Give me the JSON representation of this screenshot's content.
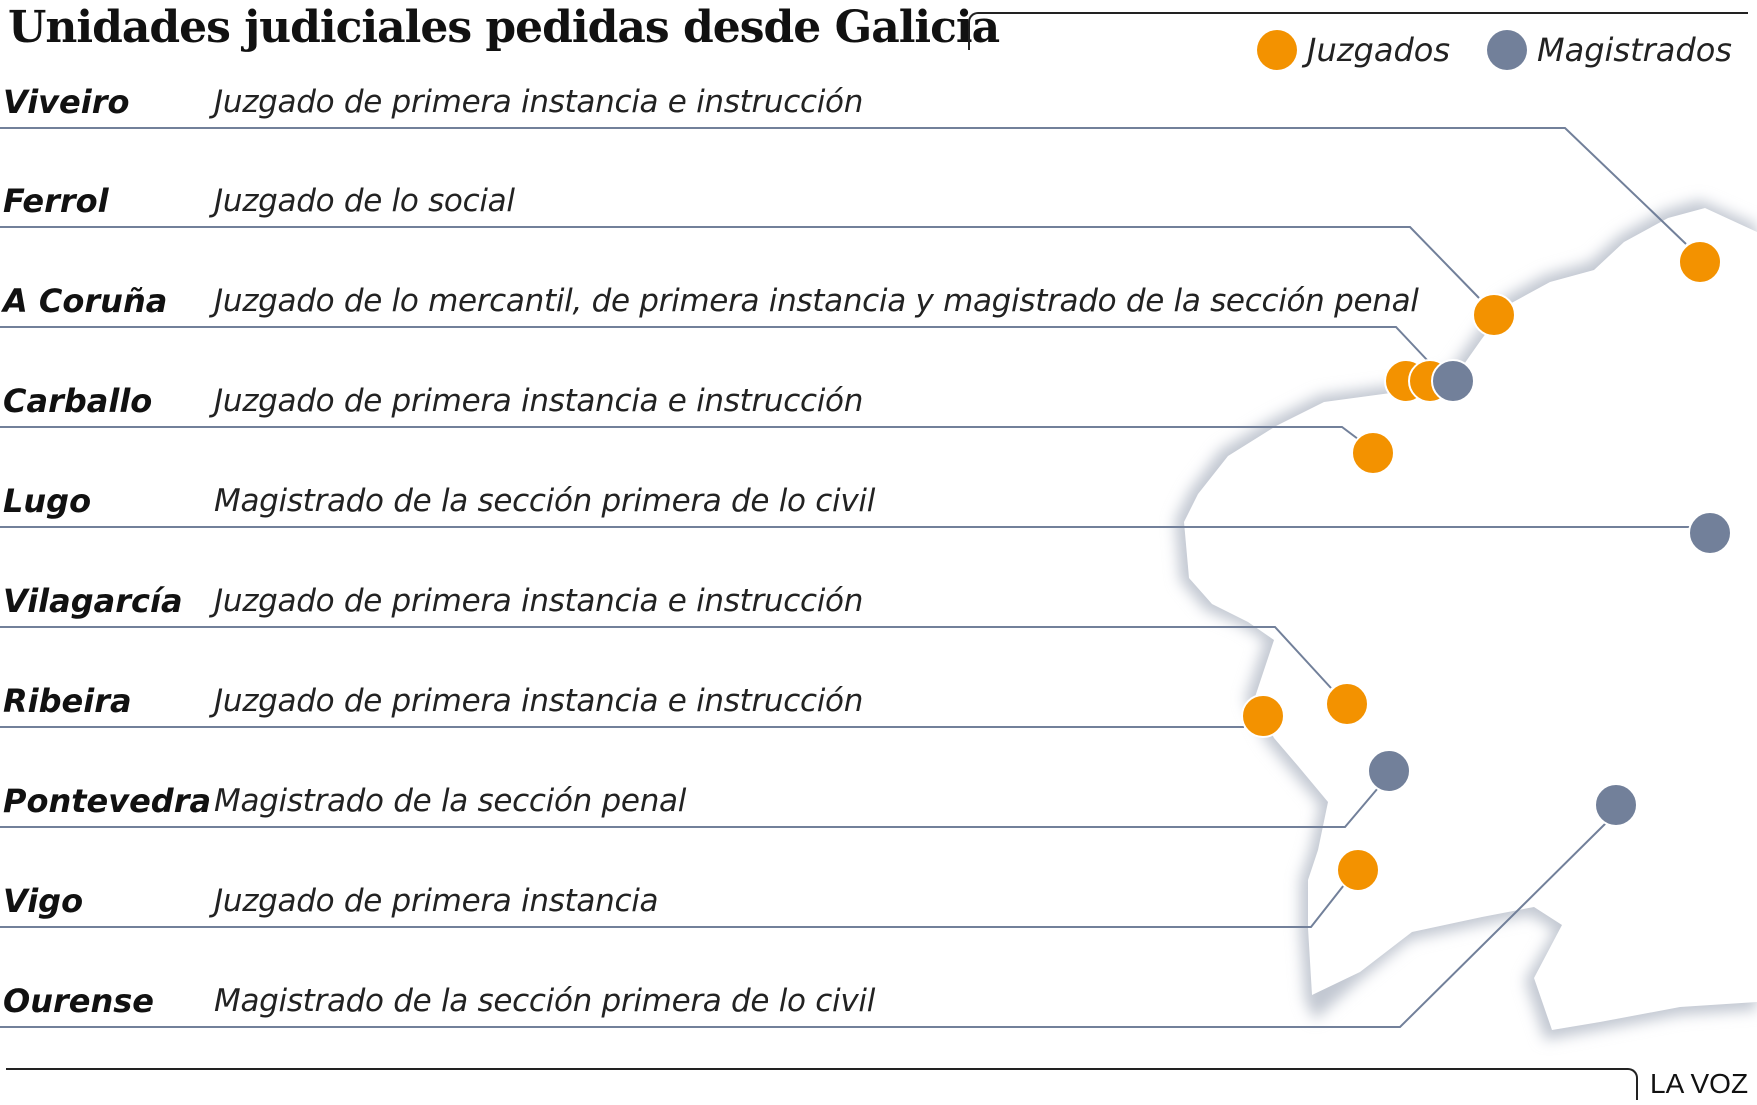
{
  "title": "Unidades judiciales pedidas desde Galicia",
  "legend": [
    {
      "label": "Juzgados",
      "color": "#F39200"
    },
    {
      "label": "Magistrados",
      "color": "#72809A"
    }
  ],
  "rows": [
    {
      "city": "Viveiro",
      "desc": "Juzgado de primera instancia e instrucción"
    },
    {
      "city": "Ferrol",
      "desc": "Juzgado de lo social"
    },
    {
      "city": "A Coruña",
      "desc": "Juzgado de lo mercantil, de primera instancia y magistrado de la sección penal"
    },
    {
      "city": "Carballo",
      "desc": "Juzgado de primera instancia e instrucción"
    },
    {
      "city": "Lugo",
      "desc": "Magistrado de la sección primera de lo civil"
    },
    {
      "city": "Vilagarcía",
      "desc": "Juzgado de primera instancia e instrucción"
    },
    {
      "city": "Ribeira",
      "desc": "Juzgado de primera instancia e instrucción"
    },
    {
      "city": "Pontevedra",
      "desc": "Magistrado de la sección penal"
    },
    {
      "city": "Vigo",
      "desc": "Juzgado de primera instancia"
    },
    {
      "city": "Ourense",
      "desc": "Magistrado de la sección primera de lo civil"
    }
  ],
  "markers": [
    {
      "city": "Viveiro",
      "type": "Juzgados"
    },
    {
      "city": "Ferrol",
      "type": "Juzgados"
    },
    {
      "city": "A Coruña",
      "type": "Juzgados"
    },
    {
      "city": "A Coruña",
      "type": "Juzgados"
    },
    {
      "city": "A Coruña",
      "type": "Magistrados"
    },
    {
      "city": "Carballo",
      "type": "Juzgados"
    },
    {
      "city": "Lugo",
      "type": "Magistrados"
    },
    {
      "city": "Vilagarcía",
      "type": "Juzgados"
    },
    {
      "city": "Ribeira",
      "type": "Juzgados"
    },
    {
      "city": "Pontevedra",
      "type": "Magistrados"
    },
    {
      "city": "Ourense",
      "type": "Magistrados"
    },
    {
      "city": "Vigo",
      "type": "Juzgados"
    }
  ],
  "brand": "LA VOZ"
}
